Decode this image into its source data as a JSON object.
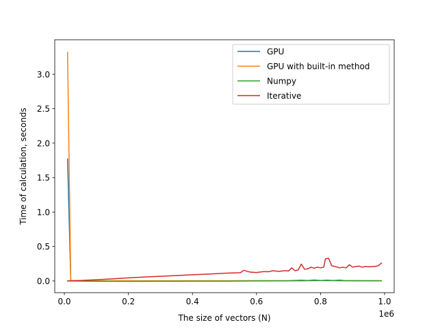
{
  "chart_data": {
    "type": "line",
    "xlabel": "The size of vectors (N)",
    "ylabel": "Time of calculation, seconds",
    "x_offset_label": "1e6",
    "xlim": [
      -30000,
      1030000
    ],
    "ylim": [
      -0.17,
      3.5
    ],
    "x_ticks": [
      0.0,
      0.2,
      0.4,
      0.6,
      0.8,
      1.0
    ],
    "x_tick_labels": [
      "0.0",
      "0.2",
      "0.4",
      "0.6",
      "0.8",
      "1.0"
    ],
    "y_ticks": [
      0.0,
      0.5,
      1.0,
      1.5,
      2.0,
      2.5,
      3.0
    ],
    "y_tick_labels": [
      "0.0",
      "0.5",
      "1.0",
      "1.5",
      "2.0",
      "2.5",
      "3.0"
    ],
    "legend_position": "top-right",
    "series": [
      {
        "name": "GPU",
        "color": "#1f77b4",
        "points": [
          [
            10000,
            1.77
          ],
          [
            20000,
            0.003
          ],
          [
            100000,
            0.002
          ],
          [
            300000,
            0.002
          ],
          [
            500000,
            0.002
          ],
          [
            600000,
            0.003
          ],
          [
            700000,
            0.004
          ],
          [
            740000,
            0.012
          ],
          [
            760000,
            0.006
          ],
          [
            780000,
            0.014
          ],
          [
            800000,
            0.006
          ],
          [
            820000,
            0.012
          ],
          [
            840000,
            0.006
          ],
          [
            860000,
            0.013
          ],
          [
            880000,
            0.003
          ],
          [
            990000,
            0.003
          ]
        ]
      },
      {
        "name": "GPU with built-in method",
        "color": "#ff7f0e",
        "points": [
          [
            10000,
            3.32
          ],
          [
            20000,
            0.005
          ],
          [
            100000,
            0.003
          ],
          [
            300000,
            0.003
          ],
          [
            500000,
            0.003
          ],
          [
            700000,
            0.004
          ],
          [
            800000,
            0.005
          ],
          [
            880000,
            0.004
          ],
          [
            990000,
            0.004
          ]
        ]
      },
      {
        "name": "Numpy",
        "color": "#2ca02c",
        "points": [
          [
            10000,
            0.0
          ],
          [
            100000,
            -0.005
          ],
          [
            200000,
            -0.006
          ],
          [
            300000,
            -0.005
          ],
          [
            400000,
            -0.004
          ],
          [
            500000,
            -0.003
          ],
          [
            600000,
            0.0
          ],
          [
            700000,
            0.002
          ],
          [
            800000,
            0.006
          ],
          [
            880000,
            0.004
          ],
          [
            990000,
            0.002
          ]
        ]
      },
      {
        "name": "Iterative",
        "color": "#d62728",
        "points": [
          [
            10000,
            0.0
          ],
          [
            50000,
            0.006
          ],
          [
            100000,
            0.018
          ],
          [
            150000,
            0.03
          ],
          [
            200000,
            0.045
          ],
          [
            250000,
            0.058
          ],
          [
            300000,
            0.068
          ],
          [
            350000,
            0.078
          ],
          [
            400000,
            0.09
          ],
          [
            450000,
            0.1
          ],
          [
            500000,
            0.112
          ],
          [
            540000,
            0.118
          ],
          [
            550000,
            0.12
          ],
          [
            560000,
            0.155
          ],
          [
            580000,
            0.128
          ],
          [
            600000,
            0.122
          ],
          [
            620000,
            0.135
          ],
          [
            640000,
            0.135
          ],
          [
            650000,
            0.148
          ],
          [
            670000,
            0.14
          ],
          [
            690000,
            0.15
          ],
          [
            700000,
            0.145
          ],
          [
            710000,
            0.19
          ],
          [
            720000,
            0.15
          ],
          [
            730000,
            0.158
          ],
          [
            740000,
            0.245
          ],
          [
            750000,
            0.17
          ],
          [
            760000,
            0.175
          ],
          [
            770000,
            0.2
          ],
          [
            780000,
            0.185
          ],
          [
            790000,
            0.2
          ],
          [
            800000,
            0.19
          ],
          [
            810000,
            0.2
          ],
          [
            815000,
            0.32
          ],
          [
            825000,
            0.33
          ],
          [
            835000,
            0.22
          ],
          [
            845000,
            0.21
          ],
          [
            860000,
            0.19
          ],
          [
            870000,
            0.2
          ],
          [
            880000,
            0.19
          ],
          [
            890000,
            0.235
          ],
          [
            900000,
            0.2
          ],
          [
            910000,
            0.21
          ],
          [
            920000,
            0.215
          ],
          [
            930000,
            0.2
          ],
          [
            940000,
            0.21
          ],
          [
            950000,
            0.205
          ],
          [
            960000,
            0.21
          ],
          [
            970000,
            0.21
          ],
          [
            980000,
            0.22
          ],
          [
            990000,
            0.26
          ]
        ]
      }
    ]
  }
}
